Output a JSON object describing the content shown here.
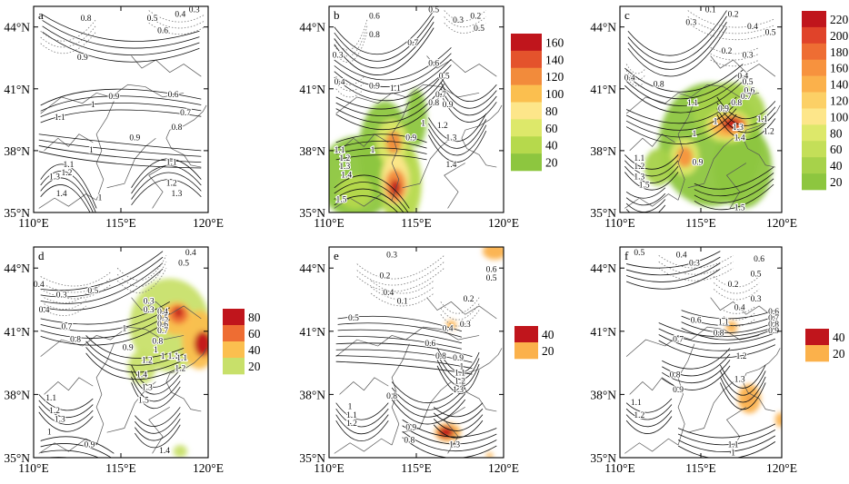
{
  "figure_title": "",
  "chart_data": [
    {
      "type": "contour",
      "panel_label": "a",
      "x_ticks": [
        "110°E",
        "115°E",
        "120°E"
      ],
      "y_ticks": [
        "44°N",
        "41°N",
        "38°N",
        "35°N"
      ],
      "xlim": [
        110,
        120
      ],
      "ylim": [
        35,
        45
      ],
      "contour_labels": [
        {
          "text": "0.8",
          "lon": 113.0,
          "lat": 44.4
        },
        {
          "text": "0.5",
          "lon": 116.8,
          "lat": 44.4
        },
        {
          "text": "0.4",
          "lon": 118.4,
          "lat": 44.6
        },
        {
          "text": "0.3",
          "lon": 119.2,
          "lat": 44.8
        },
        {
          "text": "0.6",
          "lon": 117.4,
          "lat": 43.8
        },
        {
          "text": "0.9",
          "lon": 112.8,
          "lat": 42.5
        },
        {
          "text": "1",
          "lon": 113.4,
          "lat": 40.2
        },
        {
          "text": "0.9",
          "lon": 114.6,
          "lat": 40.6
        },
        {
          "text": "0.6",
          "lon": 118.0,
          "lat": 40.7
        },
        {
          "text": "1.1",
          "lon": 111.5,
          "lat": 39.6
        },
        {
          "text": "0.7",
          "lon": 118.7,
          "lat": 39.8
        },
        {
          "text": "0.8",
          "lon": 118.2,
          "lat": 39.1
        },
        {
          "text": "0.9",
          "lon": 115.8,
          "lat": 38.6
        },
        {
          "text": "1",
          "lon": 113.3,
          "lat": 38.0
        },
        {
          "text": "1.1",
          "lon": 117.9,
          "lat": 37.4
        },
        {
          "text": "1.1",
          "lon": 112.0,
          "lat": 37.3
        },
        {
          "text": "1.2",
          "lon": 111.9,
          "lat": 36.9
        },
        {
          "text": "1.3",
          "lon": 111.2,
          "lat": 36.7
        },
        {
          "text": "1.4",
          "lon": 111.6,
          "lat": 35.9
        },
        {
          "text": "1.2",
          "lon": 117.9,
          "lat": 36.4
        },
        {
          "text": "1.3",
          "lon": 118.2,
          "lat": 35.9
        },
        {
          "text": "1",
          "lon": 113.8,
          "lat": 35.7
        }
      ],
      "shading": null
    },
    {
      "type": "contour",
      "panel_label": "b",
      "x_ticks": [
        "110°E",
        "115°E",
        "120°E"
      ],
      "y_ticks": [
        "44°N",
        "41°N",
        "38°N",
        "35°N"
      ],
      "xlim": [
        110,
        120
      ],
      "ylim": [
        35,
        45
      ],
      "contour_labels": [
        {
          "text": "0.6",
          "lon": 112.6,
          "lat": 44.5
        },
        {
          "text": "0.5",
          "lon": 116.0,
          "lat": 44.8
        },
        {
          "text": "0.3",
          "lon": 117.4,
          "lat": 44.3
        },
        {
          "text": "0.2",
          "lon": 118.4,
          "lat": 44.5
        },
        {
          "text": "0.5",
          "lon": 118.6,
          "lat": 43.9
        },
        {
          "text": "0.8",
          "lon": 112.6,
          "lat": 43.6
        },
        {
          "text": "0.7",
          "lon": 114.8,
          "lat": 43.2
        },
        {
          "text": "0.6",
          "lon": 116.0,
          "lat": 42.2
        },
        {
          "text": "0.3",
          "lon": 110.5,
          "lat": 42.6
        },
        {
          "text": "0.4",
          "lon": 110.6,
          "lat": 41.3
        },
        {
          "text": "0.5",
          "lon": 116.6,
          "lat": 41.6
        },
        {
          "text": "0.9",
          "lon": 112.6,
          "lat": 41.1
        },
        {
          "text": "1.1",
          "lon": 113.8,
          "lat": 41.0
        },
        {
          "text": "0.7",
          "lon": 116.4,
          "lat": 40.7
        },
        {
          "text": "0.8",
          "lon": 116.0,
          "lat": 40.3
        },
        {
          "text": "0.9",
          "lon": 116.8,
          "lat": 40.2
        },
        {
          "text": "1",
          "lon": 115.4,
          "lat": 39.3
        },
        {
          "text": "1.2",
          "lon": 116.5,
          "lat": 39.2
        },
        {
          "text": "1.3",
          "lon": 117.0,
          "lat": 38.6
        },
        {
          "text": "0.9",
          "lon": 114.7,
          "lat": 38.6
        },
        {
          "text": "1",
          "lon": 112.5,
          "lat": 38.0
        },
        {
          "text": "1.1",
          "lon": 110.6,
          "lat": 38.0
        },
        {
          "text": "1.2",
          "lon": 110.9,
          "lat": 37.6
        },
        {
          "text": "1.3",
          "lon": 110.9,
          "lat": 37.2
        },
        {
          "text": "1.4",
          "lon": 111.0,
          "lat": 36.8
        },
        {
          "text": "1.4",
          "lon": 117.0,
          "lat": 37.3
        },
        {
          "text": "1.5",
          "lon": 110.7,
          "lat": 35.6
        }
      ],
      "shading": {
        "legend_levels": [
          20,
          40,
          60,
          80,
          100,
          120,
          140,
          160
        ],
        "legend_colors": [
          "#8dc63f",
          "#b6d94c",
          "#dde86a",
          "#fde68a",
          "#fbbf4f",
          "#f28b3b",
          "#e4532c",
          "#c0151c"
        ]
      }
    },
    {
      "type": "contour",
      "panel_label": "c",
      "x_ticks": [
        "110°E",
        "115°E",
        "120°E"
      ],
      "y_ticks": [
        "44°N",
        "41°N",
        "38°N",
        "35°N"
      ],
      "xlim": [
        110,
        120
      ],
      "ylim": [
        35,
        45
      ],
      "contour_labels": [
        {
          "text": "0.1",
          "lon": 115.6,
          "lat": 44.8
        },
        {
          "text": "0.2",
          "lon": 117.0,
          "lat": 44.6
        },
        {
          "text": "0.3",
          "lon": 114.4,
          "lat": 44.2
        },
        {
          "text": "0.4",
          "lon": 118.2,
          "lat": 44.0
        },
        {
          "text": "0.5",
          "lon": 119.3,
          "lat": 43.7
        },
        {
          "text": "0.2",
          "lon": 116.6,
          "lat": 42.8
        },
        {
          "text": "0.3",
          "lon": 117.9,
          "lat": 42.6
        },
        {
          "text": "0.4",
          "lon": 110.6,
          "lat": 41.5
        },
        {
          "text": "0.4",
          "lon": 117.6,
          "lat": 41.6
        },
        {
          "text": "0.5",
          "lon": 117.9,
          "lat": 41.3
        },
        {
          "text": "0.6",
          "lon": 118.0,
          "lat": 40.9
        },
        {
          "text": "0.7",
          "lon": 117.8,
          "lat": 40.6
        },
        {
          "text": "0.8",
          "lon": 117.2,
          "lat": 40.3
        },
        {
          "text": "0.9",
          "lon": 116.4,
          "lat": 40.0
        },
        {
          "text": "0.8",
          "lon": 112.4,
          "lat": 41.2
        },
        {
          "text": "1.1",
          "lon": 114.5,
          "lat": 40.3
        },
        {
          "text": "1",
          "lon": 115.9,
          "lat": 39.4
        },
        {
          "text": "1.3",
          "lon": 117.3,
          "lat": 39.1
        },
        {
          "text": "1.4",
          "lon": 117.4,
          "lat": 38.6
        },
        {
          "text": "1.1",
          "lon": 118.8,
          "lat": 39.5
        },
        {
          "text": "1.2",
          "lon": 119.2,
          "lat": 38.9
        },
        {
          "text": "1",
          "lon": 114.6,
          "lat": 38.8
        },
        {
          "text": "0.9",
          "lon": 114.8,
          "lat": 37.4
        },
        {
          "text": "1.1",
          "lon": 111.2,
          "lat": 37.6
        },
        {
          "text": "1.2",
          "lon": 111.2,
          "lat": 37.2
        },
        {
          "text": "1.3",
          "lon": 111.2,
          "lat": 36.7
        },
        {
          "text": "1.5",
          "lon": 111.5,
          "lat": 36.3
        },
        {
          "text": "1.5",
          "lon": 117.4,
          "lat": 35.2
        }
      ],
      "shading": {
        "legend_levels": [
          20,
          40,
          60,
          80,
          100,
          120,
          140,
          160,
          180,
          200,
          220
        ],
        "legend_colors": [
          "#8dc63f",
          "#a7d24a",
          "#c4df58",
          "#dde86a",
          "#fde68a",
          "#fcd066",
          "#fbb14b",
          "#f7923e",
          "#ee6d33",
          "#e0432a",
          "#c0151c"
        ]
      }
    },
    {
      "type": "contour",
      "panel_label": "d",
      "x_ticks": [
        "110°E",
        "115°E",
        "120°E"
      ],
      "y_ticks": [
        "44°N",
        "41°N",
        "38°N",
        "35°N"
      ],
      "xlim": [
        110,
        120
      ],
      "ylim": [
        35,
        45
      ],
      "contour_labels": [
        {
          "text": "0.4",
          "lon": 119.0,
          "lat": 44.7
        },
        {
          "text": "0.5",
          "lon": 118.6,
          "lat": 44.2
        },
        {
          "text": "0.4",
          "lon": 110.3,
          "lat": 43.2
        },
        {
          "text": "0.3",
          "lon": 111.6,
          "lat": 42.7
        },
        {
          "text": "0.5",
          "lon": 113.4,
          "lat": 42.9
        },
        {
          "text": "0.4",
          "lon": 110.6,
          "lat": 42.0
        },
        {
          "text": "0.3",
          "lon": 116.6,
          "lat": 42.4
        },
        {
          "text": "0.3",
          "lon": 116.6,
          "lat": 42.0
        },
        {
          "text": "0.7",
          "lon": 111.9,
          "lat": 41.2
        },
        {
          "text": "0.8",
          "lon": 112.4,
          "lat": 40.6
        },
        {
          "text": "1",
          "lon": 115.2,
          "lat": 41.1
        },
        {
          "text": "0.9",
          "lon": 115.4,
          "lat": 40.2
        },
        {
          "text": "0.4",
          "lon": 117.4,
          "lat": 41.9
        },
        {
          "text": "0.5",
          "lon": 117.4,
          "lat": 41.6
        },
        {
          "text": "0.6",
          "lon": 117.4,
          "lat": 41.3
        },
        {
          "text": "0.7",
          "lon": 117.4,
          "lat": 41.0
        },
        {
          "text": "0.8",
          "lon": 117.1,
          "lat": 40.5
        },
        {
          "text": "1",
          "lon": 117.0,
          "lat": 40.1
        },
        {
          "text": "1",
          "lon": 117.4,
          "lat": 39.8
        },
        {
          "text": "1.1",
          "lon": 118.0,
          "lat": 39.8
        },
        {
          "text": "1.2",
          "lon": 116.5,
          "lat": 39.6
        },
        {
          "text": "1.4",
          "lon": 116.2,
          "lat": 38.9
        },
        {
          "text": "1.1",
          "lon": 118.5,
          "lat": 39.7
        },
        {
          "text": "1.2",
          "lon": 118.4,
          "lat": 39.2
        },
        {
          "text": "1.3",
          "lon": 116.5,
          "lat": 38.3
        },
        {
          "text": "1.5",
          "lon": 116.3,
          "lat": 37.7
        },
        {
          "text": "1.1",
          "lon": 111.0,
          "lat": 37.8
        },
        {
          "text": "1.2",
          "lon": 111.2,
          "lat": 37.2
        },
        {
          "text": "1.3",
          "lon": 111.5,
          "lat": 36.8
        },
        {
          "text": "1",
          "lon": 110.9,
          "lat": 36.2
        },
        {
          "text": "0.9",
          "lon": 113.2,
          "lat": 35.6
        },
        {
          "text": "1.4",
          "lon": 117.5,
          "lat": 35.3
        }
      ],
      "shading": {
        "legend_levels": [
          20,
          40,
          60,
          80
        ],
        "legend_colors": [
          "#c8e06a",
          "#fbbf4f",
          "#ee6d33",
          "#c0151c"
        ]
      }
    },
    {
      "type": "contour",
      "panel_label": "e",
      "x_ticks": [
        "110°E",
        "115°E",
        "120°E"
      ],
      "y_ticks": [
        "44°N",
        "41°N",
        "38°N",
        "35°N"
      ],
      "xlim": [
        110,
        120
      ],
      "ylim": [
        35,
        45
      ],
      "contour_labels": [
        {
          "text": "0.3",
          "lon": 113.6,
          "lat": 44.6
        },
        {
          "text": "0.2",
          "lon": 113.2,
          "lat": 43.6
        },
        {
          "text": "0.1",
          "lon": 114.2,
          "lat": 42.4
        },
        {
          "text": "0.4",
          "lon": 113.4,
          "lat": 42.8
        },
        {
          "text": "0.6",
          "lon": 119.3,
          "lat": 43.9
        },
        {
          "text": "0.5",
          "lon": 119.3,
          "lat": 43.5
        },
        {
          "text": "0.2",
          "lon": 118.0,
          "lat": 42.5
        },
        {
          "text": "0.5",
          "lon": 111.4,
          "lat": 41.6
        },
        {
          "text": "0.3",
          "lon": 117.8,
          "lat": 41.3
        },
        {
          "text": "0.4",
          "lon": 116.8,
          "lat": 41.1
        },
        {
          "text": "0.6",
          "lon": 115.8,
          "lat": 40.4
        },
        {
          "text": "0.8",
          "lon": 116.4,
          "lat": 39.8
        },
        {
          "text": "0.9",
          "lon": 117.4,
          "lat": 39.7
        },
        {
          "text": "1",
          "lon": 117.6,
          "lat": 39.3
        },
        {
          "text": "1.1",
          "lon": 117.5,
          "lat": 39.0
        },
        {
          "text": "1.2",
          "lon": 117.5,
          "lat": 38.6
        },
        {
          "text": "1.3",
          "lon": 117.4,
          "lat": 38.2
        },
        {
          "text": "0.8",
          "lon": 113.6,
          "lat": 37.9
        },
        {
          "text": "1",
          "lon": 111.2,
          "lat": 37.4
        },
        {
          "text": "1.1",
          "lon": 111.3,
          "lat": 37.0
        },
        {
          "text": "1.2",
          "lon": 111.3,
          "lat": 36.6
        },
        {
          "text": "0.9",
          "lon": 114.7,
          "lat": 36.4
        },
        {
          "text": "0.8",
          "lon": 114.6,
          "lat": 35.8
        },
        {
          "text": "1.3",
          "lon": 117.2,
          "lat": 35.6
        }
      ],
      "shading": {
        "legend_levels": [
          20,
          40
        ],
        "legend_colors": [
          "#fbb14b",
          "#c0151c"
        ]
      }
    },
    {
      "type": "contour",
      "panel_label": "f",
      "x_ticks": [
        "110°E",
        "115°E",
        "120°E"
      ],
      "y_ticks": [
        "44°N",
        "41°N",
        "38°N",
        "35°N"
      ],
      "xlim": [
        110,
        120
      ],
      "ylim": [
        35,
        45
      ],
      "contour_labels": [
        {
          "text": "0.5",
          "lon": 111.2,
          "lat": 44.7
        },
        {
          "text": "0.4",
          "lon": 113.8,
          "lat": 44.6
        },
        {
          "text": "0.3",
          "lon": 114.6,
          "lat": 44.2
        },
        {
          "text": "0.6",
          "lon": 118.6,
          "lat": 44.4
        },
        {
          "text": "0.5",
          "lon": 118.4,
          "lat": 43.7
        },
        {
          "text": "0.2",
          "lon": 117.0,
          "lat": 43.2
        },
        {
          "text": "0.3",
          "lon": 118.4,
          "lat": 42.5
        },
        {
          "text": "0.4",
          "lon": 117.4,
          "lat": 42.1
        },
        {
          "text": "0.6",
          "lon": 119.5,
          "lat": 41.9
        },
        {
          "text": "0.7",
          "lon": 119.5,
          "lat": 41.6
        },
        {
          "text": "0.8",
          "lon": 119.5,
          "lat": 41.3
        },
        {
          "text": "0.9",
          "lon": 119.5,
          "lat": 41.0
        },
        {
          "text": "0.6",
          "lon": 114.7,
          "lat": 41.5
        },
        {
          "text": "0.8",
          "lon": 116.1,
          "lat": 40.9
        },
        {
          "text": "1.1",
          "lon": 116.4,
          "lat": 41.4
        },
        {
          "text": "0.7",
          "lon": 113.6,
          "lat": 40.6
        },
        {
          "text": "1.2",
          "lon": 117.5,
          "lat": 39.8
        },
        {
          "text": "0.8",
          "lon": 113.4,
          "lat": 38.9
        },
        {
          "text": "1.3",
          "lon": 117.4,
          "lat": 38.7
        },
        {
          "text": "0.9",
          "lon": 113.6,
          "lat": 38.2
        },
        {
          "text": "1.1",
          "lon": 111.0,
          "lat": 37.6
        },
        {
          "text": "1.2",
          "lon": 111.2,
          "lat": 37.0
        },
        {
          "text": "1.1",
          "lon": 117.0,
          "lat": 35.6
        },
        {
          "text": "1",
          "lon": 117.0,
          "lat": 35.2
        }
      ],
      "shading": {
        "legend_levels": [
          20,
          40
        ],
        "legend_colors": [
          "#fbb14b",
          "#c0151c"
        ]
      }
    }
  ]
}
